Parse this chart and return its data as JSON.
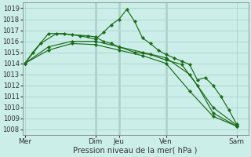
{
  "xlabel": "Pression niveau de la mer( hPa )",
  "background_color": "#cceee8",
  "grid_color": "#aad8d0",
  "line_color": "#1a6b1a",
  "vline_color": "#2a2a2a",
  "ylim": [
    1007.5,
    1019.5
  ],
  "yticks": [
    1008,
    1009,
    1010,
    1011,
    1012,
    1013,
    1014,
    1015,
    1016,
    1017,
    1018,
    1019
  ],
  "day_labels": [
    "Mer",
    "Dim",
    "Jeu",
    "Ven",
    "Sam"
  ],
  "day_positions": [
    0,
    9,
    12,
    18,
    27
  ],
  "xlim": [
    -0.3,
    28.5
  ],
  "series": [
    {
      "x": [
        0,
        1,
        3,
        5,
        7,
        9,
        10,
        11,
        12,
        13,
        14,
        15,
        16,
        17,
        18,
        19,
        20,
        21,
        22,
        23,
        24,
        25,
        26,
        27
      ],
      "y": [
        1014.0,
        1015.0,
        1016.7,
        1016.7,
        1016.5,
        1016.2,
        1016.8,
        1017.5,
        1018.0,
        1018.9,
        1017.8,
        1016.3,
        1015.8,
        1015.2,
        1014.8,
        1014.5,
        1014.2,
        1013.9,
        1012.5,
        1012.7,
        1012.0,
        1011.0,
        1009.8,
        1008.5
      ]
    },
    {
      "x": [
        0,
        2,
        4,
        6,
        8,
        9,
        10,
        11,
        12,
        14,
        16,
        18,
        20,
        22,
        24,
        27
      ],
      "y": [
        1014.0,
        1015.8,
        1016.7,
        1016.6,
        1016.5,
        1016.4,
        1016.0,
        1015.8,
        1015.5,
        1015.0,
        1014.8,
        1014.3,
        1013.9,
        1012.0,
        1009.5,
        1008.3
      ]
    },
    {
      "x": [
        0,
        3,
        6,
        9,
        12,
        15,
        18,
        21,
        24,
        27
      ],
      "y": [
        1014.0,
        1015.5,
        1016.0,
        1016.0,
        1015.5,
        1015.0,
        1014.5,
        1013.0,
        1010.0,
        1008.4
      ]
    },
    {
      "x": [
        0,
        3,
        6,
        9,
        12,
        15,
        18,
        21,
        24,
        27
      ],
      "y": [
        1014.0,
        1015.2,
        1015.8,
        1015.7,
        1015.2,
        1014.7,
        1014.0,
        1011.5,
        1009.2,
        1008.3
      ]
    }
  ]
}
